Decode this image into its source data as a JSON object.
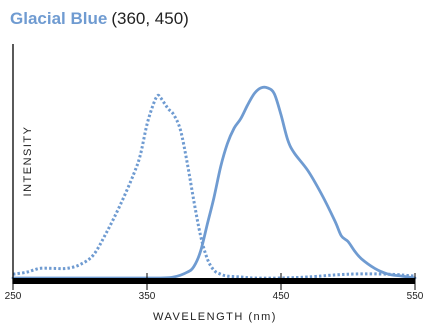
{
  "header": {
    "title": "Glacial Blue",
    "subtitle": "(360, 450)"
  },
  "colors": {
    "accent": "#6f9bd1",
    "axis": "#000000",
    "text": "#222222"
  },
  "chart_data": {
    "type": "line",
    "title": "Glacial Blue (360, 450)",
    "xlabel": "WAVELENGTH (nm)",
    "ylabel": "INTENSITY",
    "xlim": [
      250,
      550
    ],
    "ylim": [
      0,
      100
    ],
    "x_ticks": [
      250,
      350,
      450,
      550
    ],
    "grid": false,
    "legend": "none",
    "series": [
      {
        "style": "dotted",
        "x": [
          250,
          260,
          270,
          280,
          290,
          300,
          310,
          320,
          330,
          340,
          345,
          350,
          355,
          358,
          360,
          363,
          366,
          370,
          375,
          380,
          385,
          390,
          395,
          400,
          405,
          410,
          420,
          430,
          450,
          470,
          500,
          530,
          550
        ],
        "y": [
          2,
          3,
          5,
          5,
          5,
          7,
          12,
          24,
          38,
          54,
          64,
          80,
          91,
          95,
          94,
          91,
          88,
          85,
          77,
          60,
          40,
          22,
          10,
          4,
          2,
          1,
          0.5,
          0,
          0,
          0.5,
          2,
          2,
          1
        ]
      },
      {
        "style": "solid",
        "x": [
          250,
          270,
          300,
          330,
          350,
          360,
          370,
          380,
          385,
          390,
          395,
          400,
          405,
          410,
          415,
          420,
          425,
          430,
          435,
          440,
          445,
          450,
          455,
          460,
          470,
          480,
          490,
          495,
          500,
          505,
          510,
          520,
          530,
          540,
          550
        ],
        "y": [
          0,
          0,
          0,
          0,
          0,
          0,
          0.5,
          3,
          6,
          14,
          28,
          42,
          58,
          70,
          78,
          83,
          90,
          96,
          99,
          99,
          96,
          85,
          72,
          65,
          56,
          44,
          30,
          22,
          19,
          14,
          10,
          5,
          2,
          1,
          0
        ]
      }
    ]
  }
}
